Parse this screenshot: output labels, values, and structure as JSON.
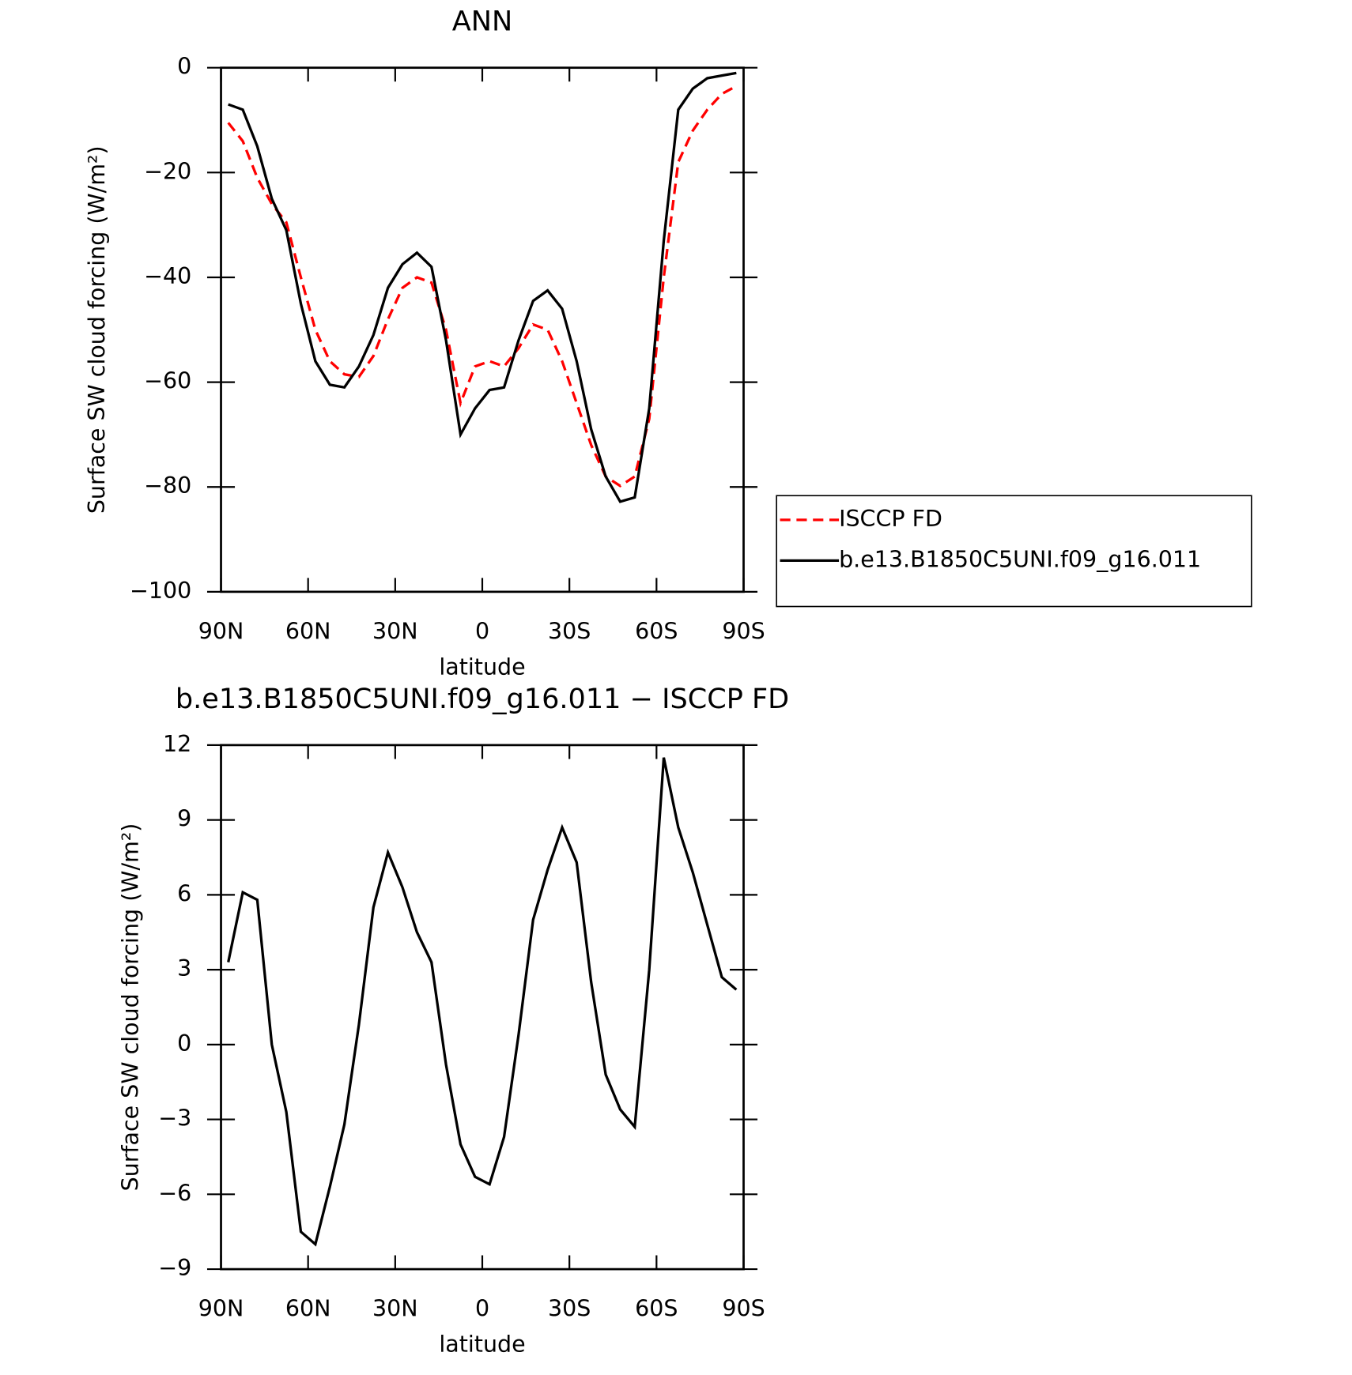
{
  "chart_data": [
    {
      "type": "line",
      "title": "ANN",
      "x_label": "latitude",
      "y_label": "Surface SW cloud forcing (W/m²)",
      "x": [
        87.5,
        82.5,
        77.5,
        72.5,
        67.5,
        62.5,
        57.5,
        52.5,
        47.5,
        42.5,
        37.5,
        32.5,
        27.5,
        22.5,
        17.5,
        12.5,
        7.5,
        2.5,
        -2.5,
        -7.5,
        -12.5,
        -17.5,
        -22.5,
        -27.5,
        -32.5,
        -37.5,
        -42.5,
        -47.5,
        -52.5,
        -57.5,
        -62.5,
        -67.5,
        -72.5,
        -77.5,
        -82.5,
        -87.5
      ],
      "series": [
        {
          "name": "ISCCP FD",
          "color": "#ff0000",
          "style": "dashed",
          "values": [
            -10.5,
            -14,
            -21,
            -26,
            -29.5,
            -40,
            -50,
            -56,
            -58.5,
            -59,
            -55,
            -48,
            -42,
            -40,
            -41,
            -50,
            -64,
            -57,
            -56,
            -57,
            -53.5,
            -49,
            -50,
            -56,
            -64,
            -72,
            -78,
            -79.8,
            -78,
            -67,
            -40,
            -18,
            -12,
            -8,
            -5,
            -3.5
          ]
        },
        {
          "name": "b.e13.B1850C5UNI.f09_g16.011",
          "color": "#000000",
          "style": "solid",
          "values": [
            -7,
            -8,
            -15,
            -25,
            -31,
            -45,
            -56,
            -60.5,
            -61,
            -57,
            -51,
            -42,
            -37.5,
            -35.3,
            -38,
            -52,
            -70,
            -65,
            -61.5,
            -61,
            -52,
            -44.5,
            -42.5,
            -46,
            -56,
            -69,
            -78,
            -82.8,
            -82,
            -65,
            -33,
            -8,
            -4,
            -2,
            -1.5,
            -1
          ]
        }
      ],
      "xlim": [
        90,
        -90
      ],
      "xticks": [
        {
          "value": 90,
          "label": "90N"
        },
        {
          "value": 60,
          "label": "60N"
        },
        {
          "value": 30,
          "label": "30N"
        },
        0,
        {
          "value": -30,
          "label": "30S"
        },
        {
          "value": -60,
          "label": "60S"
        },
        {
          "value": -90,
          "label": "90S"
        }
      ],
      "ylim": [
        -100,
        0
      ],
      "yticks": [
        {
          "value": -100,
          "label": "−100"
        },
        {
          "value": -80,
          "label": "−80"
        },
        {
          "value": -60,
          "label": "−60"
        },
        {
          "value": -40,
          "label": "−40"
        },
        {
          "value": -20,
          "label": "−20"
        },
        0
      ],
      "legend": "right"
    },
    {
      "type": "line",
      "title": "b.e13.B1850C5UNI.f09_g16.011 − ISCCP FD",
      "x_label": "latitude",
      "y_label": "Surface SW cloud forcing (W/m²)",
      "x": [
        87.5,
        82.5,
        77.5,
        72.5,
        67.5,
        62.5,
        57.5,
        52.5,
        47.5,
        42.5,
        37.5,
        32.5,
        27.5,
        22.5,
        17.5,
        12.5,
        7.5,
        2.5,
        -2.5,
        -7.5,
        -12.5,
        -17.5,
        -22.5,
        -27.5,
        -32.5,
        -37.5,
        -42.5,
        -47.5,
        -52.5,
        -57.5,
        -62.5,
        -67.5,
        -72.5,
        -77.5,
        -82.5,
        -87.5
      ],
      "series": [
        {
          "color": "#000000",
          "style": "solid",
          "values": [
            3.3,
            6.1,
            5.8,
            0,
            -2.7,
            -7.5,
            -8,
            -5.7,
            -3.2,
            0.8,
            5.5,
            7.7,
            6.3,
            4.5,
            3.3,
            -0.8,
            -4,
            -5.3,
            -5.6,
            -3.7,
            0.4,
            5,
            7,
            8.7,
            7.3,
            2.5,
            -1.2,
            -2.6,
            -3.3,
            3,
            11.5,
            8.7,
            6.9,
            4.8,
            2.7,
            2.2
          ]
        }
      ],
      "xlim": [
        90,
        -90
      ],
      "xticks": [
        {
          "value": 90,
          "label": "90N"
        },
        {
          "value": 60,
          "label": "60N"
        },
        {
          "value": 30,
          "label": "30N"
        },
        0,
        {
          "value": -30,
          "label": "30S"
        },
        {
          "value": -60,
          "label": "60S"
        },
        {
          "value": -90,
          "label": "90S"
        }
      ],
      "ylim": [
        -9,
        12
      ],
      "yticks": [
        {
          "value": -9,
          "label": "−9"
        },
        {
          "value": -6,
          "label": "−6"
        },
        {
          "value": -3,
          "label": "−3"
        },
        0,
        3,
        6,
        9,
        12
      ]
    }
  ]
}
